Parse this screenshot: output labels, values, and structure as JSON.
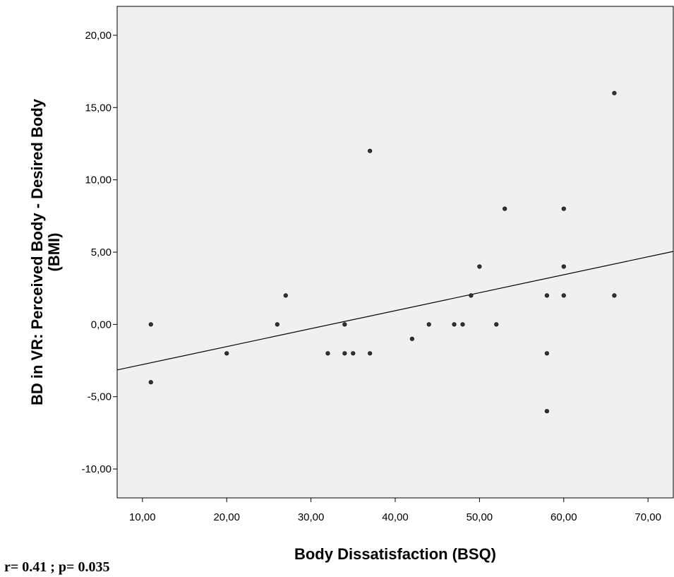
{
  "chart_data": {
    "type": "scatter",
    "xlabel": "Body Dissatisfaction (BSQ)",
    "ylabel_line1": "BD in VR: Perceived Body - Desired Body",
    "ylabel_line2": "(BMI)",
    "xlim": [
      7,
      73
    ],
    "ylim": [
      -12,
      22
    ],
    "x_ticks": [
      10,
      20,
      30,
      40,
      50,
      60,
      70
    ],
    "x_tick_labels": [
      "10,00",
      "20,00",
      "30,00",
      "40,00",
      "50,00",
      "60,00",
      "70,00"
    ],
    "y_ticks": [
      20,
      15,
      10,
      5,
      0,
      -5,
      -10
    ],
    "y_tick_labels": [
      "20,00",
      "15,00",
      "10,00",
      "5,00",
      "0,00",
      "-5,00",
      "-10,00"
    ],
    "grid": false,
    "plot_background": "#f0f0f0",
    "marker_color": "#333333",
    "points": [
      {
        "x": 11,
        "y": 0
      },
      {
        "x": 11,
        "y": -4
      },
      {
        "x": 20,
        "y": -2
      },
      {
        "x": 26,
        "y": 0
      },
      {
        "x": 27,
        "y": 2
      },
      {
        "x": 32,
        "y": -2
      },
      {
        "x": 34,
        "y": 0
      },
      {
        "x": 34,
        "y": -2
      },
      {
        "x": 35,
        "y": -2
      },
      {
        "x": 37,
        "y": 12
      },
      {
        "x": 37,
        "y": -2
      },
      {
        "x": 42,
        "y": -1
      },
      {
        "x": 44,
        "y": 0
      },
      {
        "x": 47,
        "y": 0
      },
      {
        "x": 48,
        "y": 0
      },
      {
        "x": 49,
        "y": 2
      },
      {
        "x": 50,
        "y": 4
      },
      {
        "x": 52,
        "y": 0
      },
      {
        "x": 53,
        "y": 8
      },
      {
        "x": 58,
        "y": 2
      },
      {
        "x": 58,
        "y": -2
      },
      {
        "x": 58,
        "y": -6
      },
      {
        "x": 60,
        "y": 8
      },
      {
        "x": 60,
        "y": 4
      },
      {
        "x": 60,
        "y": 2
      },
      {
        "x": 66,
        "y": 16
      },
      {
        "x": 66,
        "y": 2
      }
    ],
    "fit_line": {
      "x": [
        7,
        73
      ],
      "y": [
        -3.15,
        5.05
      ]
    },
    "annotation": "r= 0.41 ; p= 0.035"
  }
}
